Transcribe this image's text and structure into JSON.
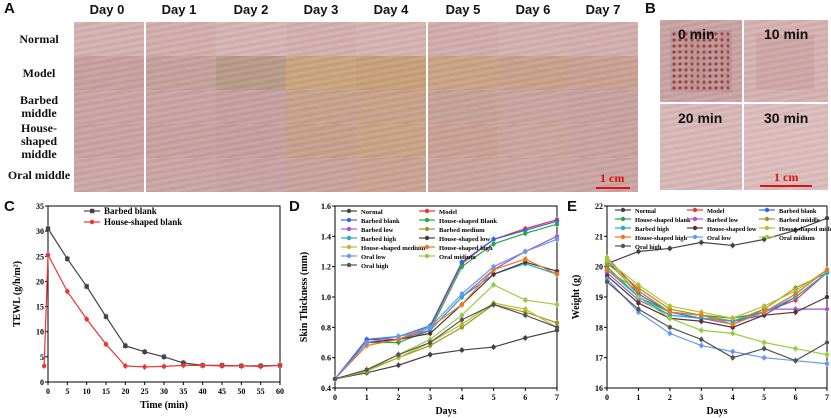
{
  "panels": {
    "a": "A",
    "b": "B",
    "c": "C",
    "d": "D",
    "e": "E"
  },
  "panelA": {
    "days": [
      "Day 0",
      "Day 1",
      "Day 2",
      "Day 3",
      "Day 4",
      "Day 5",
      "Day 6",
      "Day 7"
    ],
    "rows": [
      "Normal",
      "Model",
      "Barbed middle",
      "House-shaped middle",
      "Oral middle"
    ],
    "scale": "1 cm"
  },
  "panelB": {
    "times": [
      "0 min",
      "10 min",
      "20 min",
      "30 min"
    ],
    "scale": "1 cm"
  },
  "chart_data": [
    {
      "type": "line",
      "panel": "C",
      "xlabel": "Time (min)",
      "ylabel": "TEWL (g/h/m²)",
      "xlim": [
        0,
        60
      ],
      "ylim": [
        0,
        35
      ],
      "xticks": [
        0,
        5,
        10,
        15,
        20,
        25,
        30,
        35,
        40,
        45,
        50,
        55,
        60
      ],
      "yticks": [
        0,
        5,
        10,
        15,
        20,
        25,
        30,
        35
      ],
      "x": [
        -1,
        0,
        5,
        10,
        15,
        20,
        25,
        30,
        35,
        40,
        45,
        50,
        55,
        60
      ],
      "series": [
        {
          "name": "Barbed blank",
          "color": "#444444",
          "marker": "square",
          "values": [
            null,
            30.5,
            24.5,
            19,
            13,
            7.2,
            6,
            5,
            3.8,
            3.3,
            3.3,
            3.2,
            3.2,
            3.3
          ]
        },
        {
          "name": "House-shaped blank",
          "color": "#ee3333",
          "marker": "circle",
          "values": [
            3.2,
            25.3,
            18,
            12.5,
            7.5,
            3.2,
            3,
            3.1,
            3.3,
            3.3,
            3.2,
            3.2,
            3.1,
            3.3
          ]
        }
      ]
    },
    {
      "type": "line",
      "panel": "D",
      "xlabel": "Days",
      "ylabel": "Skin Thickness (mm)",
      "xlim": [
        0,
        7
      ],
      "ylim": [
        0.4,
        1.6
      ],
      "xticks": [
        0,
        1,
        2,
        3,
        4,
        5,
        6,
        7
      ],
      "yticks": [
        0.4,
        0.6,
        0.8,
        1.0,
        1.2,
        1.4,
        1.6
      ],
      "x": [
        0,
        1,
        2,
        3,
        4,
        5,
        6,
        7
      ],
      "series": [
        {
          "name": "Normal",
          "color": "#444444",
          "values": [
            0.46,
            0.5,
            0.55,
            0.62,
            0.65,
            0.67,
            0.73,
            0.78
          ]
        },
        {
          "name": "Model",
          "color": "#ee3333",
          "values": [
            0.46,
            0.72,
            0.72,
            0.8,
            1.22,
            1.38,
            1.45,
            1.51
          ]
        },
        {
          "name": "Barbed blank",
          "color": "#3366ee",
          "values": [
            0.46,
            0.72,
            0.74,
            0.81,
            1.23,
            1.38,
            1.44,
            1.5
          ]
        },
        {
          "name": "House-shaped Blank",
          "color": "#22aa44",
          "values": [
            0.46,
            0.7,
            0.7,
            0.78,
            1.2,
            1.35,
            1.42,
            1.48
          ]
        },
        {
          "name": "Barbed low",
          "color": "#aa55cc",
          "values": [
            0.46,
            0.7,
            0.72,
            0.78,
            1.0,
            1.18,
            1.3,
            1.4
          ]
        },
        {
          "name": "Barbed medium",
          "color": "#999922",
          "values": [
            0.46,
            0.52,
            0.6,
            0.68,
            0.8,
            0.95,
            0.9,
            0.83
          ]
        },
        {
          "name": "Barbed high",
          "color": "#22aacc",
          "values": [
            0.46,
            0.7,
            0.74,
            0.78,
            1.0,
            1.15,
            1.22,
            1.15
          ]
        },
        {
          "name": "House-shaped low",
          "color": "#553333",
          "values": [
            0.46,
            0.7,
            0.72,
            0.76,
            0.95,
            1.15,
            1.23,
            1.17
          ]
        },
        {
          "name": "House-shaped medium",
          "color": "#bbbb33",
          "values": [
            0.46,
            0.51,
            0.6,
            0.7,
            0.82,
            0.96,
            0.92,
            0.8
          ]
        },
        {
          "name": "House-shaped high",
          "color": "#ee7722",
          "values": [
            0.46,
            0.68,
            0.72,
            0.8,
            0.95,
            1.18,
            1.25,
            1.15
          ]
        },
        {
          "name": "Oral low",
          "color": "#6699ee",
          "values": [
            0.46,
            0.7,
            0.74,
            0.8,
            1.02,
            1.2,
            1.3,
            1.38
          ]
        },
        {
          "name": "Oral midium",
          "color": "#99cc44",
          "values": [
            0.46,
            0.52,
            0.62,
            0.72,
            0.88,
            1.08,
            0.98,
            0.95
          ]
        },
        {
          "name": "Oral high",
          "color": "#555555",
          "values": [
            0.46,
            0.52,
            0.62,
            0.7,
            0.85,
            0.95,
            0.88,
            0.8
          ]
        }
      ]
    },
    {
      "type": "line",
      "panel": "E",
      "xlabel": "Days",
      "ylabel": "Weight (g)",
      "xlim": [
        0,
        7
      ],
      "ylim": [
        16,
        22
      ],
      "xticks": [
        0,
        1,
        2,
        3,
        4,
        5,
        6,
        7
      ],
      "yticks": [
        16,
        17,
        18,
        19,
        20,
        21,
        22
      ],
      "x": [
        0,
        1,
        2,
        3,
        4,
        5,
        6,
        7
      ],
      "series": [
        {
          "name": "Normal",
          "color": "#444444",
          "values": [
            20.1,
            20.5,
            20.6,
            20.8,
            20.7,
            20.9,
            21.2,
            21.6
          ]
        },
        {
          "name": "Model",
          "color": "#ee3333",
          "values": [
            20.3,
            19.2,
            18.5,
            18.4,
            18.2,
            18.5,
            18.9,
            19.8
          ]
        },
        {
          "name": "Barbed blank",
          "color": "#3366ee",
          "values": [
            20.2,
            19.1,
            18.5,
            18.3,
            18.2,
            18.4,
            19.0,
            19.8
          ]
        },
        {
          "name": "House-shaped blank",
          "color": "#22aa44",
          "values": [
            20.0,
            19.0,
            18.5,
            18.4,
            18.3,
            18.5,
            19.1,
            19.9
          ]
        },
        {
          "name": "Barbed low",
          "color": "#aa55cc",
          "values": [
            19.8,
            18.9,
            18.4,
            18.3,
            18.1,
            18.6,
            18.6,
            18.6
          ]
        },
        {
          "name": "Barbed middle",
          "color": "#999922",
          "values": [
            20.1,
            19.3,
            18.6,
            18.4,
            18.2,
            18.6,
            19.3,
            19.8
          ]
        },
        {
          "name": "Barbed high",
          "color": "#22aacc",
          "values": [
            19.9,
            19.0,
            18.4,
            18.3,
            18.2,
            18.5,
            19.0,
            19.8
          ]
        },
        {
          "name": "House-shaped low",
          "color": "#553333",
          "values": [
            19.7,
            18.8,
            18.3,
            18.2,
            18.0,
            18.4,
            18.5,
            19.0
          ]
        },
        {
          "name": "House-shaped middle",
          "color": "#bbbb33",
          "values": [
            20.2,
            19.4,
            18.7,
            18.5,
            18.3,
            18.7,
            19.2,
            19.9
          ]
        },
        {
          "name": "House-shaped high",
          "color": "#ee7722",
          "values": [
            19.9,
            19.2,
            18.5,
            18.4,
            18.1,
            18.5,
            19.1,
            19.9
          ]
        },
        {
          "name": "Oral low",
          "color": "#6699ee",
          "values": [
            19.6,
            18.5,
            17.8,
            17.4,
            17.2,
            17.0,
            16.9,
            16.8
          ]
        },
        {
          "name": "Oral midium",
          "color": "#99cc44",
          "values": [
            20.3,
            19.0,
            18.3,
            17.9,
            17.8,
            17.5,
            17.3,
            17.1
          ]
        },
        {
          "name": "Oral high",
          "color": "#555555",
          "values": [
            19.5,
            18.6,
            18.0,
            17.6,
            17.0,
            17.3,
            16.9,
            17.5
          ]
        }
      ]
    }
  ]
}
